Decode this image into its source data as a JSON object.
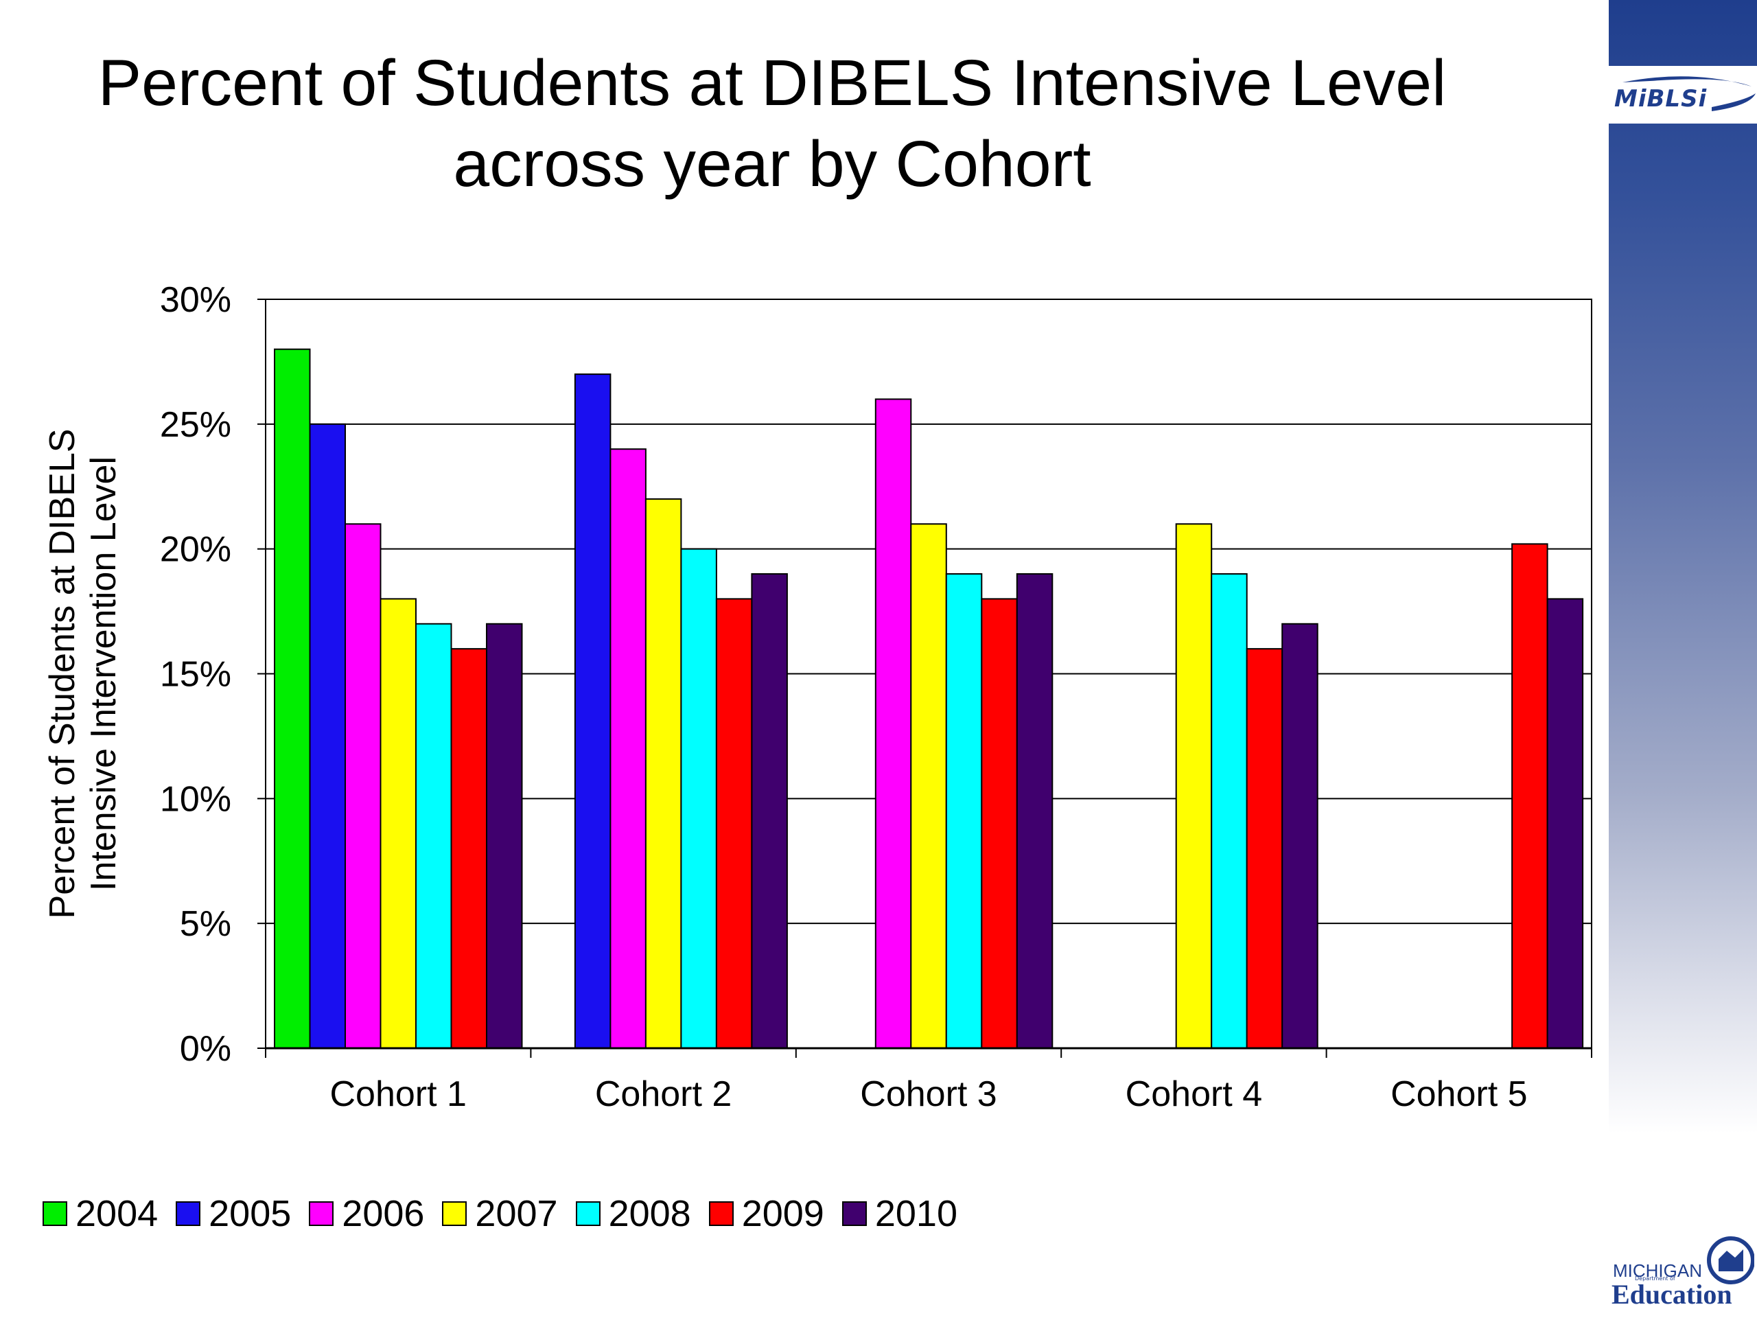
{
  "slide": {
    "title_line1": "Percent of Students at DIBELS Intensive Level",
    "title_line2": "across year by Cohort",
    "logo_top_text": "MiBLSi",
    "logo_bottom_line1": "MICHIGAN",
    "logo_bottom_line2": "Department of",
    "logo_bottom_line3": "Education",
    "sidebar_color": "#1f3e8d"
  },
  "chart_data": {
    "type": "bar",
    "title": "",
    "ylabel_line1": "Percent of Students at DIBELS",
    "ylabel_line2": "Intensive Intervention Level",
    "xlabel": "",
    "ylim": [
      0,
      30
    ],
    "yticks": [
      "0%",
      "5%",
      "10%",
      "15%",
      "20%",
      "25%",
      "30%"
    ],
    "ytick_values": [
      0,
      5,
      10,
      15,
      20,
      25,
      30
    ],
    "categories": [
      "Cohort 1",
      "Cohort 2",
      "Cohort 3",
      "Cohort 4",
      "Cohort 5"
    ],
    "grid": true,
    "legend_position": "bottom",
    "series": [
      {
        "name": "2004",
        "color": "#00ee00",
        "values": [
          28,
          null,
          null,
          null,
          null
        ]
      },
      {
        "name": "2005",
        "color": "#1a0ff0",
        "values": [
          25,
          27,
          null,
          null,
          null
        ]
      },
      {
        "name": "2006",
        "color": "#ff00ff",
        "values": [
          21,
          24,
          26,
          null,
          null
        ]
      },
      {
        "name": "2007",
        "color": "#ffff00",
        "values": [
          18,
          22,
          21,
          21,
          null
        ]
      },
      {
        "name": "2008",
        "color": "#00ffff",
        "values": [
          17,
          20,
          19,
          19,
          null
        ]
      },
      {
        "name": "2009",
        "color": "#ff0000",
        "values": [
          16,
          18,
          18,
          16,
          20.2
        ]
      },
      {
        "name": "2010",
        "color": "#40006e",
        "values": [
          17,
          19,
          19,
          17,
          18
        ]
      }
    ]
  }
}
